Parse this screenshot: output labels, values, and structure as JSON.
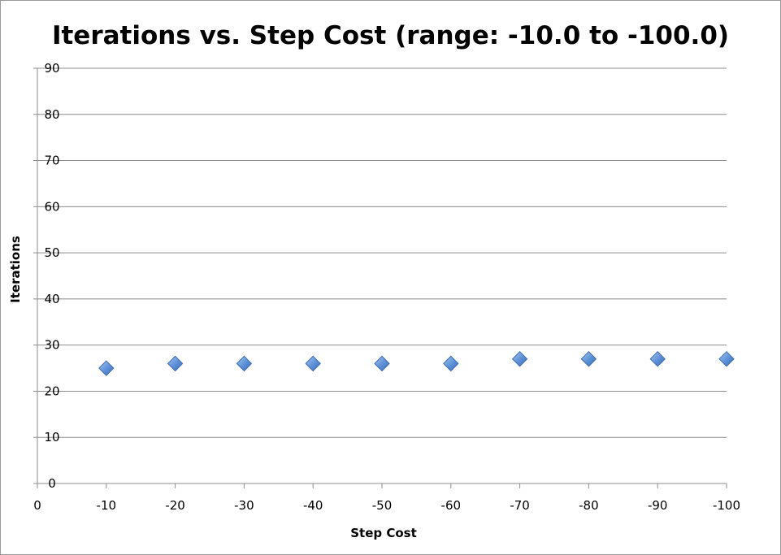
{
  "chart_data": {
    "type": "scatter",
    "title": "Iterations vs. Step Cost (range: -10.0 to -100.0)",
    "xlabel": "Step Cost",
    "ylabel": "Iterations",
    "x_tick_labels": [
      "0",
      "-10",
      "-20",
      "-30",
      "-40",
      "-50",
      "-60",
      "-70",
      "-80",
      "-90",
      "-100"
    ],
    "y_tick_labels": [
      "0",
      "10",
      "20",
      "30",
      "40",
      "50",
      "60",
      "70",
      "80",
      "90"
    ],
    "ylim": [
      0,
      90
    ],
    "xlim": [
      0,
      -100
    ],
    "grid": "horizontal",
    "legend": "none",
    "marker": "diamond",
    "marker_color": "#5b8fd6",
    "points": [
      {
        "x": -10,
        "y": 25
      },
      {
        "x": -20,
        "y": 26
      },
      {
        "x": -30,
        "y": 26
      },
      {
        "x": -40,
        "y": 26
      },
      {
        "x": -50,
        "y": 26
      },
      {
        "x": -60,
        "y": 26
      },
      {
        "x": -70,
        "y": 27
      },
      {
        "x": -80,
        "y": 27
      },
      {
        "x": -90,
        "y": 27
      },
      {
        "x": -100,
        "y": 27
      }
    ]
  }
}
